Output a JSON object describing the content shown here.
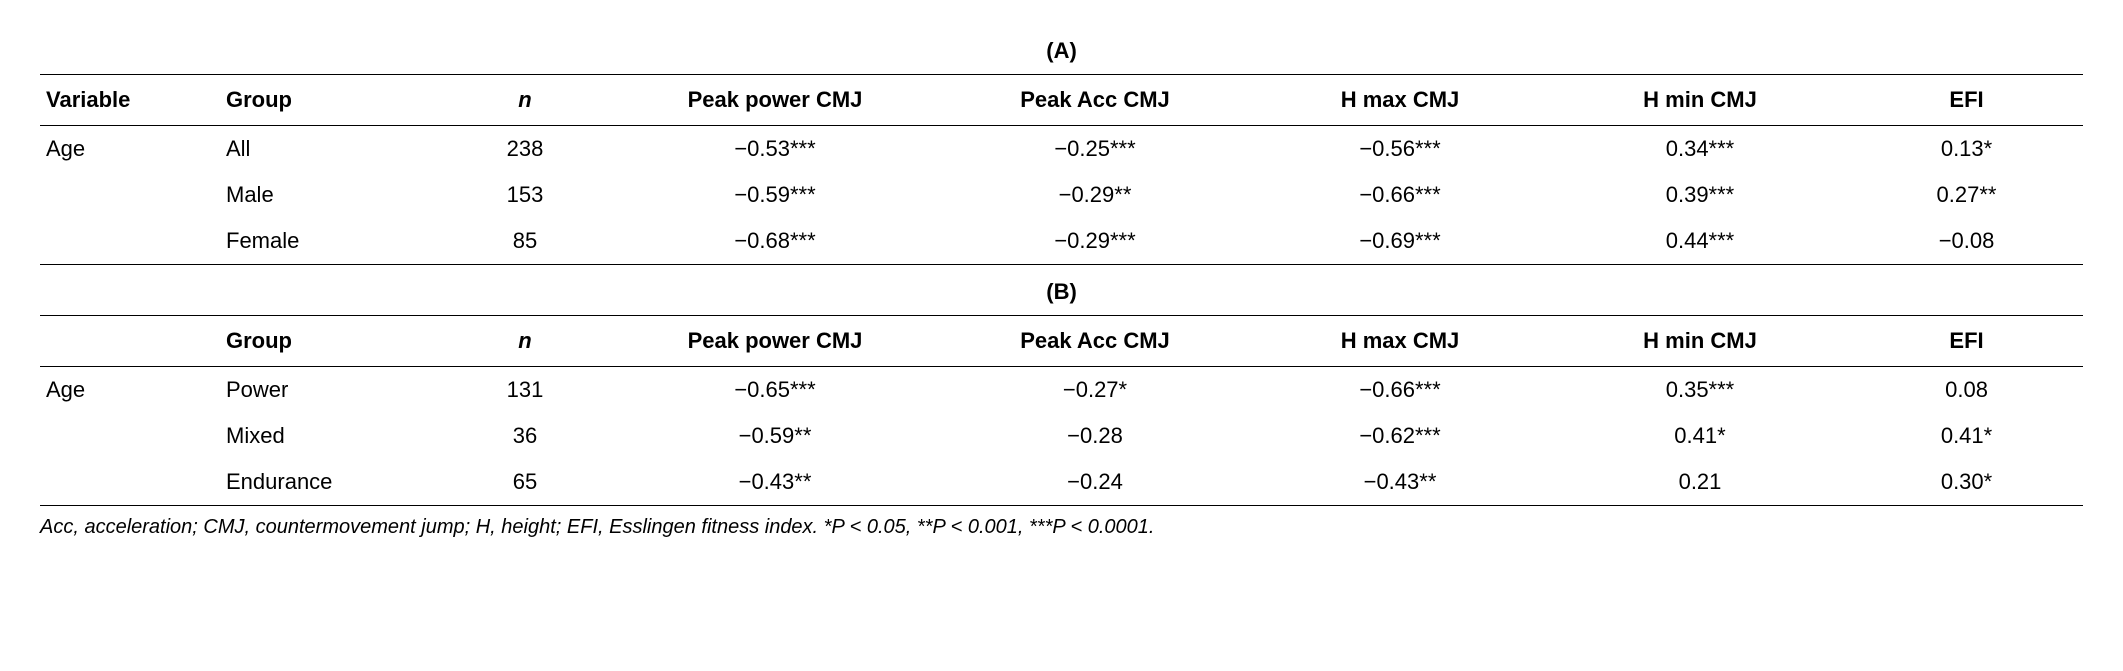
{
  "section_a": {
    "label": "(A)",
    "columns": {
      "variable": "Variable",
      "group": "Group",
      "n": "n",
      "peak_power": "Peak power CMJ",
      "peak_acc": "Peak Acc CMJ",
      "h_max": "H max CMJ",
      "h_min": "H min CMJ",
      "efi": "EFI"
    },
    "variable_label": "Age",
    "rows": [
      {
        "group": "All",
        "n": "238",
        "peak_power": "−0.53***",
        "peak_acc": "−0.25***",
        "h_max": "−0.56***",
        "h_min": "0.34***",
        "efi": "0.13*"
      },
      {
        "group": "Male",
        "n": "153",
        "peak_power": "−0.59***",
        "peak_acc": "−0.29**",
        "h_max": "−0.66***",
        "h_min": "0.39***",
        "efi": "0.27**"
      },
      {
        "group": "Female",
        "n": "85",
        "peak_power": "−0.68***",
        "peak_acc": "−0.29***",
        "h_max": "−0.69***",
        "h_min": "0.44***",
        "efi": "−0.08"
      }
    ]
  },
  "section_b": {
    "label": "(B)",
    "columns": {
      "variable": "",
      "group": "Group",
      "n": "n",
      "peak_power": "Peak power CMJ",
      "peak_acc": "Peak Acc CMJ",
      "h_max": "H max CMJ",
      "h_min": "H min CMJ",
      "efi": "EFI"
    },
    "variable_label": "Age",
    "rows": [
      {
        "group": "Power",
        "n": "131",
        "peak_power": "−0.65***",
        "peak_acc": "−0.27*",
        "h_max": "−0.66***",
        "h_min": "0.35***",
        "efi": "0.08"
      },
      {
        "group": "Mixed",
        "n": "36",
        "peak_power": "−0.59**",
        "peak_acc": "−0.28",
        "h_max": "−0.62***",
        "h_min": "0.41*",
        "efi": "0.41*"
      },
      {
        "group": "Endurance",
        "n": "65",
        "peak_power": "−0.43**",
        "peak_acc": "−0.24",
        "h_max": "−0.43**",
        "h_min": "0.21",
        "efi": "0.30*"
      }
    ]
  },
  "footnote": "Acc, acceleration; CMJ, countermovement jump; H, height; EFI, Esslingen fitness index. *P < 0.05, **P < 0.001, ***P < 0.0001."
}
